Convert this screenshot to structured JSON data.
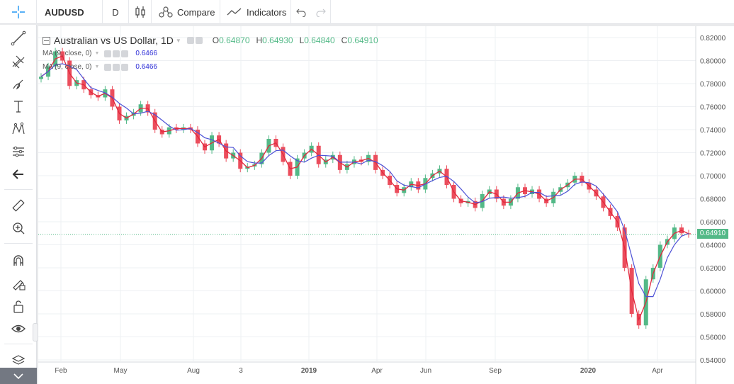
{
  "toolbar": {
    "symbol": "AUDUSD",
    "interval": "D",
    "compare_label": "Compare",
    "indicators_label": "Indicators"
  },
  "legend": {
    "title": "Australian vs US Dollar, 1D",
    "o_key": "O",
    "o_val": "0.64870",
    "h_key": "H",
    "h_val": "0.64930",
    "l_key": "L",
    "l_val": "0.64840",
    "c_key": "C",
    "c_val": "0.64910",
    "ma1_label": "MA (9, close, 0)",
    "ma1_value": "0.6466",
    "ma2_label": "MA (9, close, 0)",
    "ma2_value": "0.6466"
  },
  "price_tag": "0.64910",
  "colors": {
    "up": "#53b987",
    "down": "#eb4d5c",
    "ma1": "#e2273d",
    "ma2": "#4e52d6",
    "accent": "#2196f3"
  },
  "chart_data": {
    "type": "candlestick",
    "title": "Australian vs US Dollar, 1D",
    "y_ticks": [
      "0.82000",
      "0.80000",
      "0.78000",
      "0.76000",
      "0.74000",
      "0.72000",
      "0.70000",
      "0.68000",
      "0.66000",
      "0.64000",
      "0.62000",
      "0.60000",
      "0.58000",
      "0.56000",
      "0.54000"
    ],
    "ylim": [
      0.54,
      0.82
    ],
    "x_ticks": [
      "Feb",
      "May",
      "Aug",
      "3",
      "2019",
      "Apr",
      "Jun",
      "Sep",
      "2020",
      "Apr"
    ],
    "last_close": 0.6491,
    "series": [
      {
        "name": "close",
        "values": [
          0.786,
          0.795,
          0.808,
          0.8,
          0.778,
          0.783,
          0.775,
          0.77,
          0.768,
          0.775,
          0.76,
          0.748,
          0.752,
          0.755,
          0.762,
          0.755,
          0.74,
          0.736,
          0.742,
          0.74,
          0.742,
          0.74,
          0.728,
          0.722,
          0.735,
          0.728,
          0.715,
          0.72,
          0.706,
          0.708,
          0.71,
          0.72,
          0.732,
          0.725,
          0.712,
          0.7,
          0.715,
          0.72,
          0.726,
          0.71,
          0.714,
          0.718,
          0.705,
          0.71,
          0.714,
          0.712,
          0.718,
          0.705,
          0.7,
          0.692,
          0.685,
          0.69,
          0.695,
          0.688,
          0.698,
          0.702,
          0.706,
          0.692,
          0.68,
          0.676,
          0.678,
          0.672,
          0.684,
          0.688,
          0.68,
          0.674,
          0.68,
          0.69,
          0.684,
          0.688,
          0.68,
          0.676,
          0.686,
          0.69,
          0.694,
          0.7,
          0.694,
          0.688,
          0.682,
          0.672,
          0.665,
          0.655,
          0.62,
          0.58,
          0.57,
          0.61,
          0.62,
          0.64,
          0.645,
          0.655,
          0.65,
          0.6491
        ]
      }
    ]
  }
}
